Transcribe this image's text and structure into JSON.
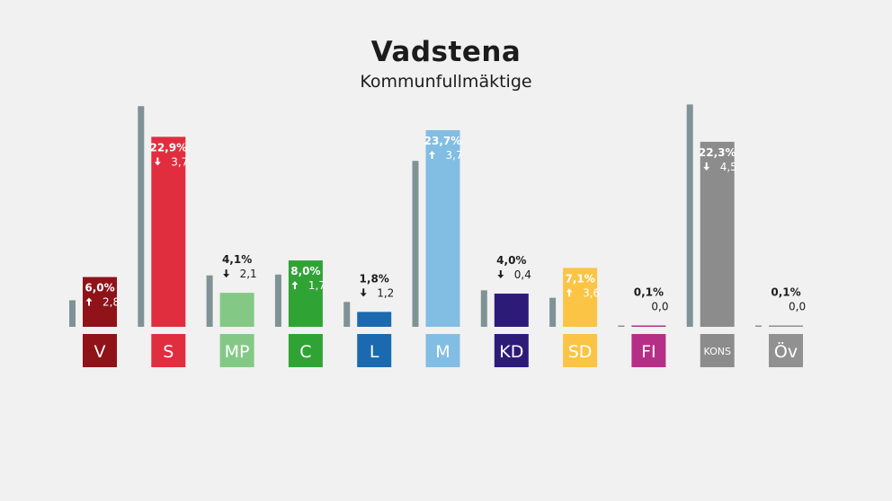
{
  "chart_data": {
    "type": "bar",
    "title": "Vadstena",
    "subtitle": "Kommunfullmäktige",
    "xlabel": "",
    "ylabel": "",
    "ylim": [
      0,
      26
    ],
    "categories": [
      "V",
      "S",
      "MP",
      "C",
      "L",
      "M",
      "KD",
      "SD",
      "FI",
      "KONS",
      "Öv"
    ],
    "series": [
      {
        "values": [
          6.0,
          22.9,
          4.1,
          8.0,
          1.8,
          23.7,
          4.0,
          7.1,
          0.1,
          22.3,
          0.1
        ],
        "value_labels": [
          "6,0%",
          "22,9%",
          "4,1%",
          "8,0%",
          "1,8%",
          "23,7%",
          "4,0%",
          "7,1%",
          "0,1%",
          "22,3%",
          "0,1%"
        ]
      },
      {
        "values": [
          3.2,
          26.6,
          6.2,
          6.3,
          3.0,
          20.0,
          4.4,
          3.5,
          0.1,
          26.8,
          0.1
        ]
      }
    ],
    "changes": [
      2.8,
      -3.7,
      -2.1,
      1.7,
      -1.2,
      3.7,
      -0.4,
      3.6,
      0.0,
      -4.5,
      0.0
    ],
    "change_labels": [
      "2,8",
      "3,7",
      "2,1",
      "1,7",
      "1,2",
      "3,7",
      "0,4",
      "3,6",
      "0,0",
      "4,5",
      "0,0"
    ],
    "colors": [
      "#8f1318",
      "#e02e3f",
      "#83c985",
      "#30a335",
      "#1b6aaf",
      "#82bde3",
      "#2d1b78",
      "#fbc445",
      "#b62f87",
      "#8c8c8c",
      "#919191"
    ],
    "previous_color": "#7f9396",
    "label_text_colors": [
      "#ffffff",
      "#ffffff",
      "#ffffff",
      "#ffffff",
      "#ffffff",
      "#ffffff",
      "#ffffff",
      "#ffffff",
      "#ffffff",
      "#ffffff",
      "#ffffff"
    ]
  }
}
